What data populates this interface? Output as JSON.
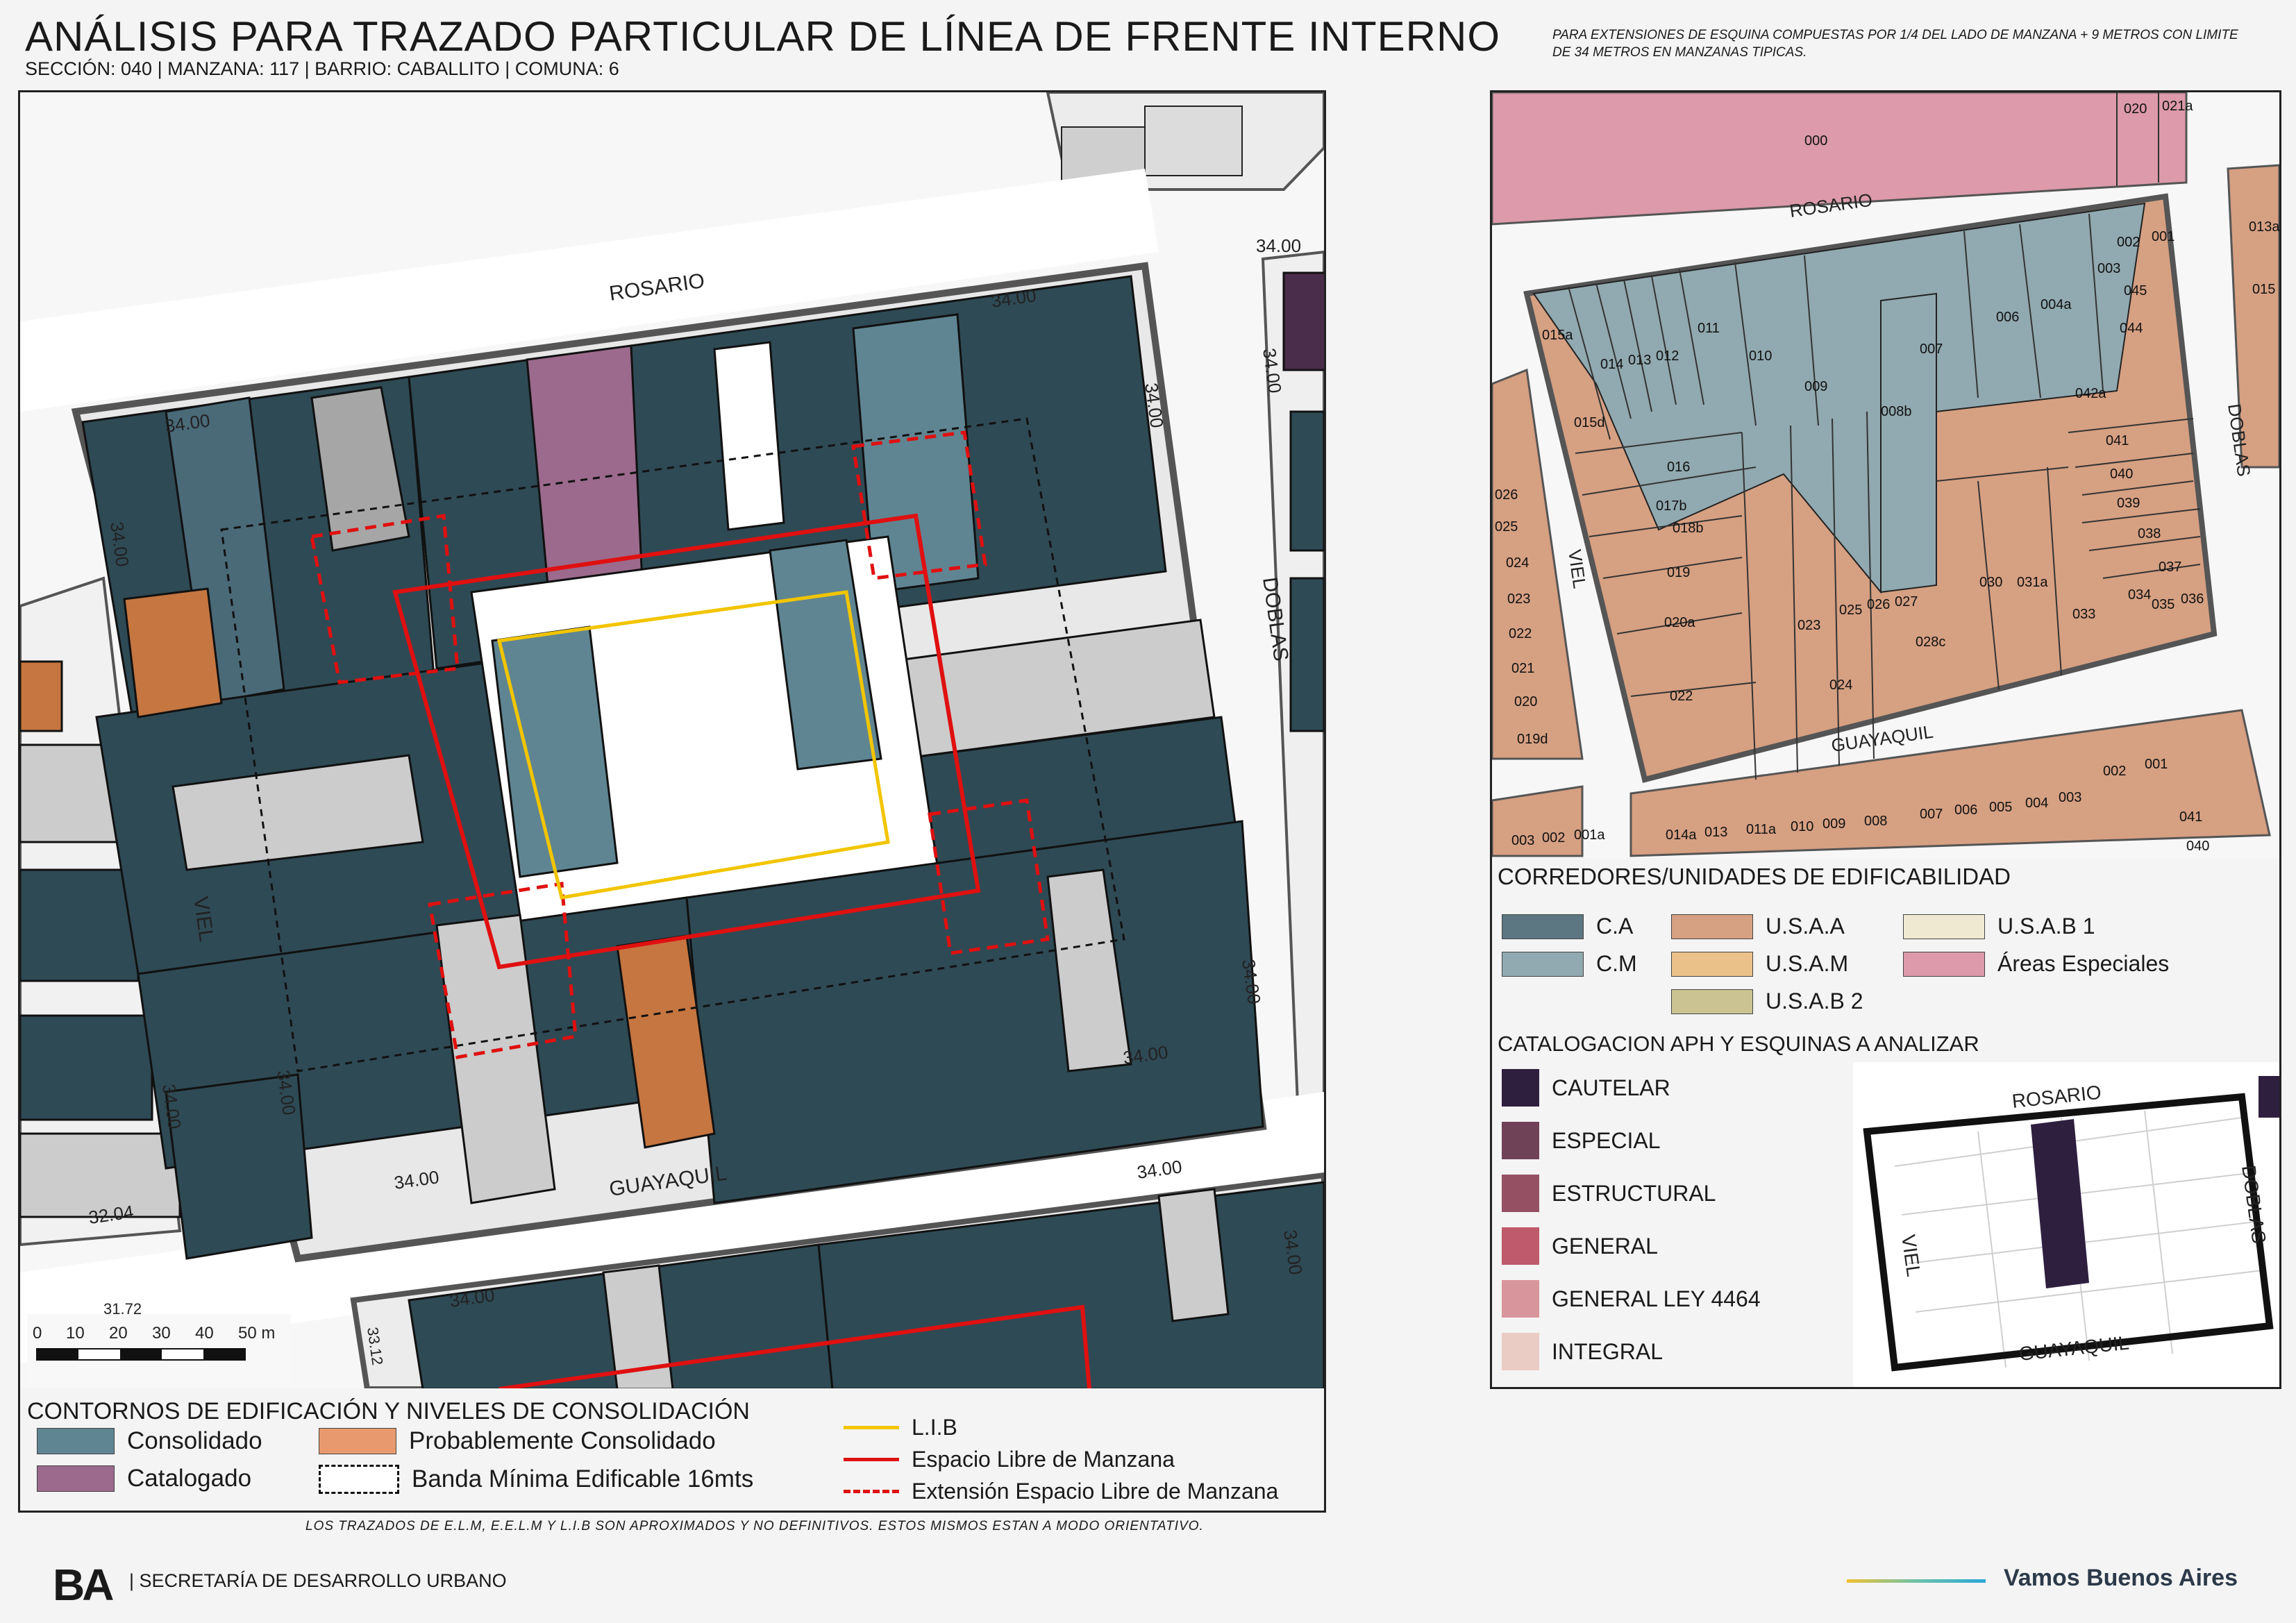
{
  "header": {
    "title": "ANÁLISIS PARA TRAZADO PARTICULAR DE LÍNEA DE FRENTE INTERNO",
    "subtitle": "SECCIÓN: 040 |  MANZANA: 117 | BARRIO: CABALLITO | COMUNA: 6",
    "note": "PARA EXTENSIONES DE ESQUINA COMPUESTAS POR 1/4 DEL LADO DE MANZANA + 9 METROS CON LIMITE DE 34 METROS EN MANZANAS TIPICAS."
  },
  "main_map": {
    "streets": {
      "north": "ROSARIO",
      "east": "DOBLAS",
      "south": "GUAYAQUIL",
      "west": "VIEL"
    },
    "dimension_labels": [
      "34.00",
      "34.00",
      "34.00",
      "34.00",
      "34.00",
      "34.00",
      "34.00",
      "34.00",
      "34.00",
      "34.00",
      "34.00",
      "34.00",
      "32.04",
      "33.12",
      "31.72"
    ],
    "scale_bar": {
      "ticks": [
        "0",
        "10",
        "20",
        "30",
        "40",
        "50 m"
      ]
    }
  },
  "main_legend": {
    "title": "CONTORNOS DE EDIFICACIÓN Y NIVELES DE CONSOLIDACIÓN",
    "items": [
      {
        "label": "Consolidado",
        "color": "#5f8592"
      },
      {
        "label": "Probablemente Consolidado",
        "color": "#e89a6e"
      },
      {
        "label": "Catalogado",
        "color": "#9b6a8c"
      },
      {
        "label": "Banda Mínima Edificable 16mts",
        "color": "#ffffff"
      }
    ],
    "lines": [
      {
        "label": "L.I.B",
        "color": "#f2c500"
      },
      {
        "label": "Espacio Libre de Manzana",
        "color": "#e01010"
      },
      {
        "label": "Extensión Espacio Libre de Manzana",
        "color": "#e01010"
      }
    ]
  },
  "parcel_map": {
    "streets": {
      "north": "ROSARIO",
      "east": "DOBLAS",
      "south": "GUAYAQUIL",
      "west": "VIEL"
    },
    "parcels_main": [
      "015a",
      "014",
      "013",
      "012",
      "011",
      "010",
      "009",
      "008b",
      "007",
      "006",
      "004a",
      "003",
      "002",
      "001",
      "045",
      "044",
      "042a",
      "041",
      "040",
      "039",
      "038",
      "037",
      "036",
      "035",
      "034",
      "033",
      "031a",
      "030",
      "028c",
      "027",
      "026",
      "025",
      "024",
      "023",
      "022",
      "020a",
      "019",
      "018b",
      "017b",
      "016",
      "015d"
    ],
    "parcels_other": [
      "000",
      "020",
      "021a",
      "026",
      "025",
      "024",
      "023",
      "022",
      "021",
      "020",
      "019d",
      "003",
      "002",
      "001a",
      "014a",
      "013",
      "011a",
      "010",
      "009",
      "008",
      "007",
      "006",
      "005",
      "004",
      "003",
      "002",
      "001",
      "041",
      "040",
      "013a",
      "015"
    ]
  },
  "corredores_legend": {
    "title": "CORREDORES/UNIDADES DE EDIFICABILIDAD",
    "items": [
      {
        "label": "C.A",
        "color": "#5c7682"
      },
      {
        "label": "C.M",
        "color": "#91a9b0"
      },
      {
        "label": "U.S.A.A",
        "color": "#d6a082"
      },
      {
        "label": "U.S.A.M",
        "color": "#ebc18a"
      },
      {
        "label": "U.S.A.B 2",
        "color": "#cbc391"
      },
      {
        "label": "U.S.A.B 1",
        "color": "#efe9d2"
      },
      {
        "label": "Áreas Especiales",
        "color": "#dc9aaa"
      }
    ]
  },
  "catalog_legend": {
    "title": "CATALOGACION APH Y ESQUINAS A ANALIZAR",
    "items": [
      {
        "label": "CAUTELAR",
        "color": "#2e1f3f"
      },
      {
        "label": "ESPECIAL",
        "color": "#6f4257"
      },
      {
        "label": "ESTRUCTURAL",
        "color": "#955063"
      },
      {
        "label": "GENERAL",
        "color": "#be5a6b"
      },
      {
        "label": "GENERAL LEY 4464",
        "color": "#d9959c"
      },
      {
        "label": "INTEGRAL",
        "color": "#ebccc4"
      }
    ],
    "inset_streets": {
      "north": "ROSARIO",
      "east": "DOBLAS",
      "south": "GUAYAQUIL",
      "west": "VIEL"
    }
  },
  "footer": {
    "disclaimer": "LOS TRAZADOS DE E.L.M, E.E.L.M Y L.I.B SON APROXIMADOS Y NO DEFINITIVOS. ESTOS MISMOS ESTAN A MODO ORIENTATIVO.",
    "logo": "BA",
    "org": "| SECRETARÍA DE DESARROLLO URBANO",
    "slogan": "Vamos Buenos Aires"
  }
}
